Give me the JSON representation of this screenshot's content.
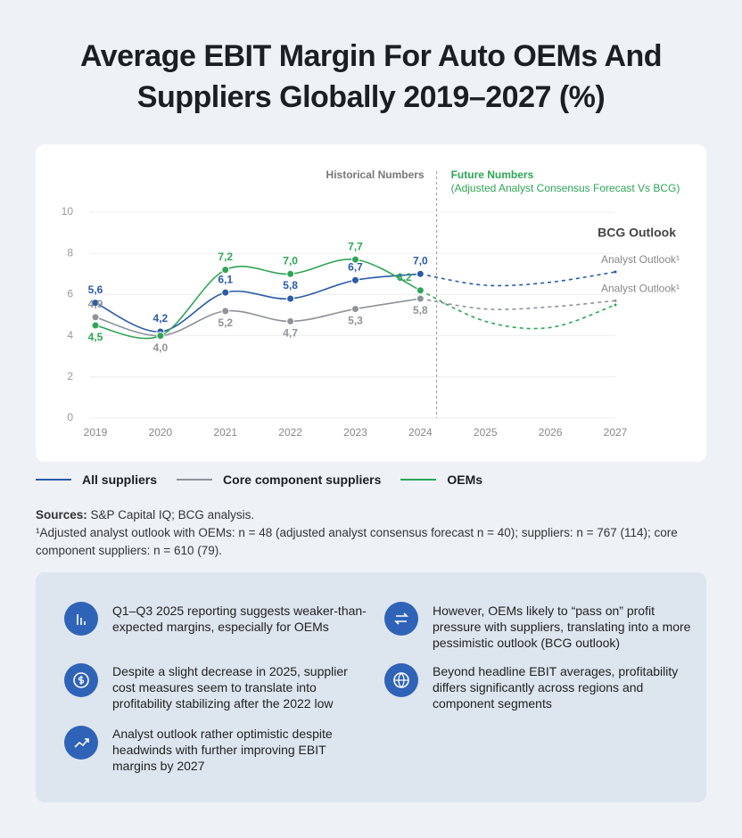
{
  "title": "Average EBIT Margin For Auto OEMs And Suppliers Globally 2019–2027 (%)",
  "chart_data": {
    "type": "line",
    "x": [
      2019,
      2020,
      2021,
      2022,
      2023,
      2024,
      2025,
      2026,
      2027
    ],
    "xlim": [
      2019,
      2027
    ],
    "xticks": [
      2019,
      2020,
      2021,
      2022,
      2023,
      2024,
      2025,
      2026,
      2027
    ],
    "ylim": [
      0,
      10
    ],
    "yticks": [
      0,
      2,
      4,
      6,
      8,
      10
    ],
    "grid": true,
    "forecast_from": 2024,
    "divider_x": 2024.25,
    "historical_label": "Historical Numbers",
    "future_label": "Future Numbers",
    "future_sublabel": "(Adjusted Analyst Consensus Forecast Vs BCG)",
    "bcg_label": "BCG Outlook",
    "outlook_labels": [
      {
        "text": "Analyst Outlook¹",
        "y": 7.1
      },
      {
        "text": "Analyst Outlook¹",
        "y": 5.7
      }
    ],
    "series": [
      {
        "name": "All suppliers",
        "color": "#2a5ba8",
        "values": [
          5.6,
          4.2,
          6.1,
          5.8,
          6.7,
          7.0,
          6.45,
          6.6,
          7.1
        ],
        "value_labels": [
          "5,6",
          "4,2",
          "6,1",
          "5,8",
          "6,7",
          "7,0",
          null,
          null,
          null
        ]
      },
      {
        "name": "Core component suppliers",
        "color": "#8e9399",
        "values": [
          4.9,
          4.0,
          5.2,
          4.7,
          5.3,
          5.8,
          5.3,
          5.4,
          5.7
        ],
        "value_labels": [
          "4,9",
          "4,0",
          "5,2",
          "4,7",
          "5,3",
          "5,8",
          null,
          null,
          null
        ]
      },
      {
        "name": "OEMs",
        "color": "#2ea556",
        "values": [
          4.5,
          4.0,
          7.2,
          7.0,
          7.7,
          6.2,
          4.7,
          4.4,
          5.5
        ],
        "value_labels": [
          "4,5",
          null,
          "7,2",
          "7,0",
          "7,7",
          "6,2",
          null,
          null,
          null
        ]
      }
    ]
  },
  "sources": {
    "label": "Sources:",
    "text": "S&P Capital IQ; BCG analysis."
  },
  "footnote": "¹Adjusted analyst outlook with OEMs: n = 48 (adjusted analyst consensus forecast n = 40); suppliers: n = 767 (114); core component suppliers: n = 610 (79).",
  "insights": [
    "Q1–Q3 2025 reporting suggests weaker-than-expected margins, especially for OEMs",
    "However, OEMs likely to “pass on” profit pressure with suppliers, translating into a more pessimistic outlook (BCG outlook)",
    "Despite a slight decrease in 2025, supplier cost measures seem to translate into profitability stabilizing after the 2022 low",
    "Beyond headline EBIT averages, profitability differs significantly across regions and component segments",
    "Analyst outlook rather optimistic despite headwinds with further improving EBIT margins by 2027"
  ]
}
